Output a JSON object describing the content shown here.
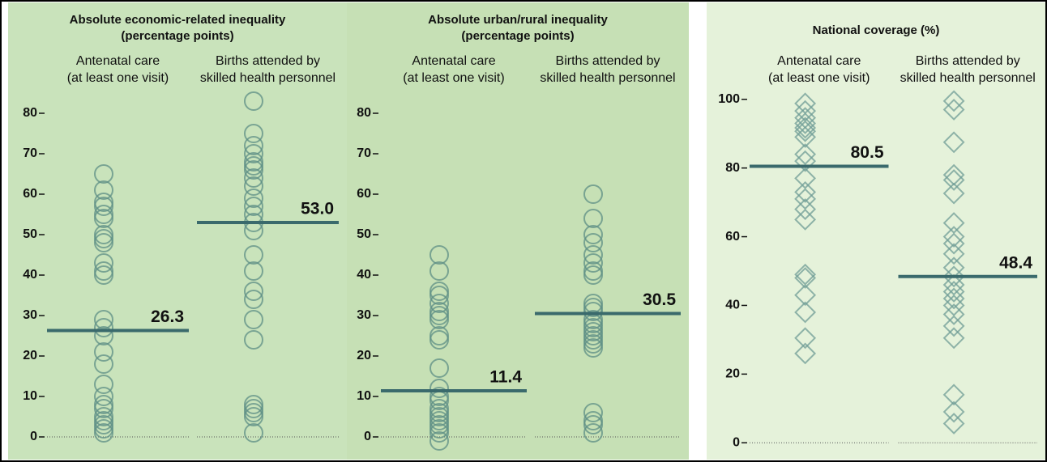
{
  "chart_data": [
    {
      "type": "strip",
      "marker": "circle",
      "bg": "#c9e3bb",
      "title": [
        "Absolute economic-related inequality",
        "(percentage points)"
      ],
      "ylim": [
        -4,
        86
      ],
      "yticks": [
        0,
        10,
        20,
        30,
        40,
        50,
        60,
        70,
        80
      ],
      "series": [
        {
          "name": [
            "Antenatal care",
            "(at least one visit)"
          ],
          "color": "#5d8f86",
          "median": 26.3,
          "values": [
            65,
            61,
            58,
            57,
            55,
            54,
            50,
            49,
            48,
            43,
            41,
            40,
            29,
            27,
            25,
            21,
            18,
            13,
            10,
            8,
            7,
            5,
            4,
            3,
            2,
            1
          ]
        },
        {
          "name": [
            "Births attended by",
            "skilled health personnel"
          ],
          "color": "#5d8f86",
          "median": 53.0,
          "median_label": "53.0",
          "values": [
            83,
            75,
            72,
            70,
            68,
            67,
            66,
            64,
            62,
            59,
            57,
            55,
            53,
            51,
            45,
            41,
            36,
            34,
            29,
            24,
            8,
            7,
            6,
            5,
            1
          ]
        }
      ]
    },
    {
      "type": "strip",
      "marker": "circle",
      "bg": "#c6e0b5",
      "title": [
        "Absolute urban/rural inequality",
        "(percentage points)"
      ],
      "ylim": [
        -4,
        86
      ],
      "yticks": [
        0,
        10,
        20,
        30,
        40,
        50,
        60,
        70,
        80
      ],
      "series": [
        {
          "name": [
            "Antenatal care",
            "(at least one visit)"
          ],
          "color": "#5d8f86",
          "median": 11.4,
          "values": [
            45,
            41,
            36,
            35,
            33,
            31,
            30,
            29,
            25,
            24,
            17,
            12,
            10,
            9,
            7,
            6,
            5,
            4,
            3,
            2,
            1,
            -1
          ]
        },
        {
          "name": [
            "Births attended by",
            "skilled health personnel"
          ],
          "color": "#5d8f86",
          "median": 30.5,
          "values": [
            60,
            54,
            50,
            48,
            45,
            43,
            41,
            40,
            33,
            32,
            31,
            29,
            28,
            27,
            26,
            25,
            24,
            23,
            22,
            6,
            4,
            3,
            1
          ]
        }
      ]
    },
    {
      "type": "strip",
      "marker": "diamond",
      "bg": "#e5f2da",
      "title": [
        "National coverage (%)"
      ],
      "ylim": [
        -3,
        103
      ],
      "yticks": [
        0,
        20,
        40,
        60,
        80,
        100
      ],
      "series": [
        {
          "name": [
            "Antenatal care",
            "(at least one visit)"
          ],
          "color": "#6f9c95",
          "median": 80.5,
          "values": [
            98.8,
            96.6,
            94.6,
            93,
            91.7,
            90.7,
            89,
            84,
            82,
            77,
            73,
            71,
            68,
            65,
            49,
            48,
            43,
            38,
            30.5,
            26
          ]
        },
        {
          "name": [
            "Births attended by",
            "skilled health personnel"
          ],
          "color": "#6f9c95",
          "median": 48.4,
          "values": [
            99.5,
            97,
            87.5,
            78,
            76.5,
            72.6,
            64,
            60,
            58,
            55,
            51,
            48.4,
            46,
            44,
            42,
            40,
            37.4,
            34,
            30.5,
            14,
            9,
            5.6
          ]
        }
      ]
    }
  ]
}
